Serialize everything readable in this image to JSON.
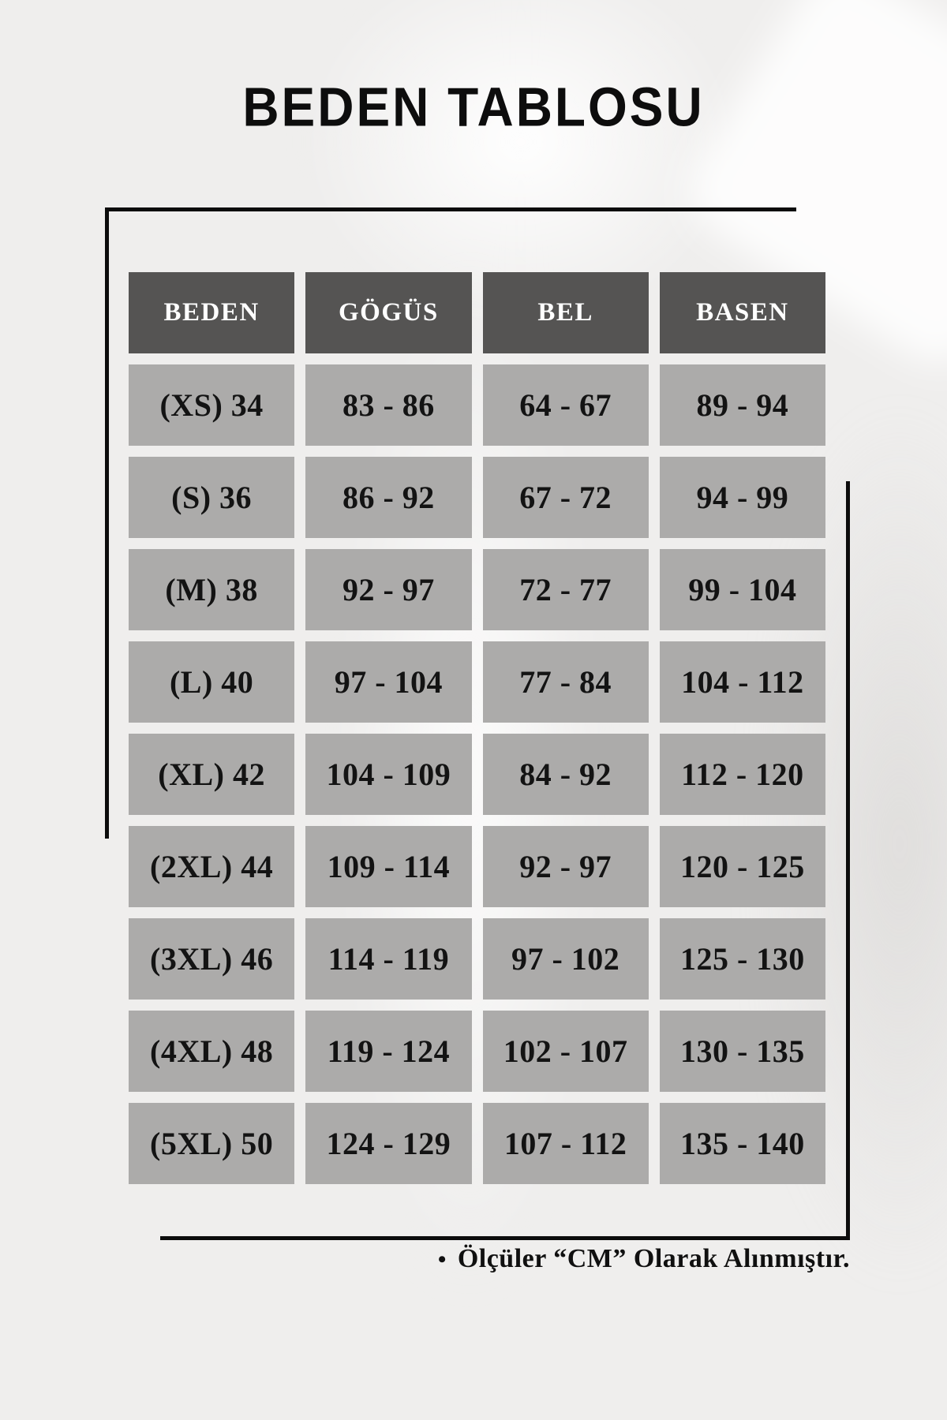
{
  "page": {
    "title": "BEDEN TABLOSU",
    "background_color": "#efeeed",
    "frame_line_color": "#0c0c0c"
  },
  "colors": {
    "header_cell_bg": "#555453",
    "header_cell_text": "#ffffff",
    "data_cell_bg": "#acabaa",
    "data_cell_text": "#131313"
  },
  "chart_data": {
    "type": "table",
    "title": "BEDEN TABLOSU",
    "columns": [
      "BEDEN",
      "GÖGÜS",
      "BEL",
      "BASEN"
    ],
    "rows": [
      [
        "(XS) 34",
        "83 - 86",
        "64 - 67",
        "89 - 94"
      ],
      [
        "(S) 36",
        "86 - 92",
        "67 - 72",
        "94 - 99"
      ],
      [
        "(M) 38",
        "92 - 97",
        "72 - 77",
        "99 - 104"
      ],
      [
        "(L) 40",
        "97 - 104",
        "77 - 84",
        "104 - 112"
      ],
      [
        "(XL) 42",
        "104 - 109",
        "84 - 92",
        "112 - 120"
      ],
      [
        "(2XL) 44",
        "109 - 114",
        "92 - 97",
        "120 - 125"
      ],
      [
        "(3XL) 46",
        "114 - 119",
        "97 - 102",
        "125 - 130"
      ],
      [
        "(4XL) 48",
        "119 - 124",
        "102 - 107",
        "130 - 135"
      ],
      [
        "(5XL) 50",
        "124 - 129",
        "107 - 112",
        "135 - 140"
      ]
    ],
    "note": "Ölçüler “CM” Olarak Alınmıştır.",
    "note_bullet": "•"
  }
}
